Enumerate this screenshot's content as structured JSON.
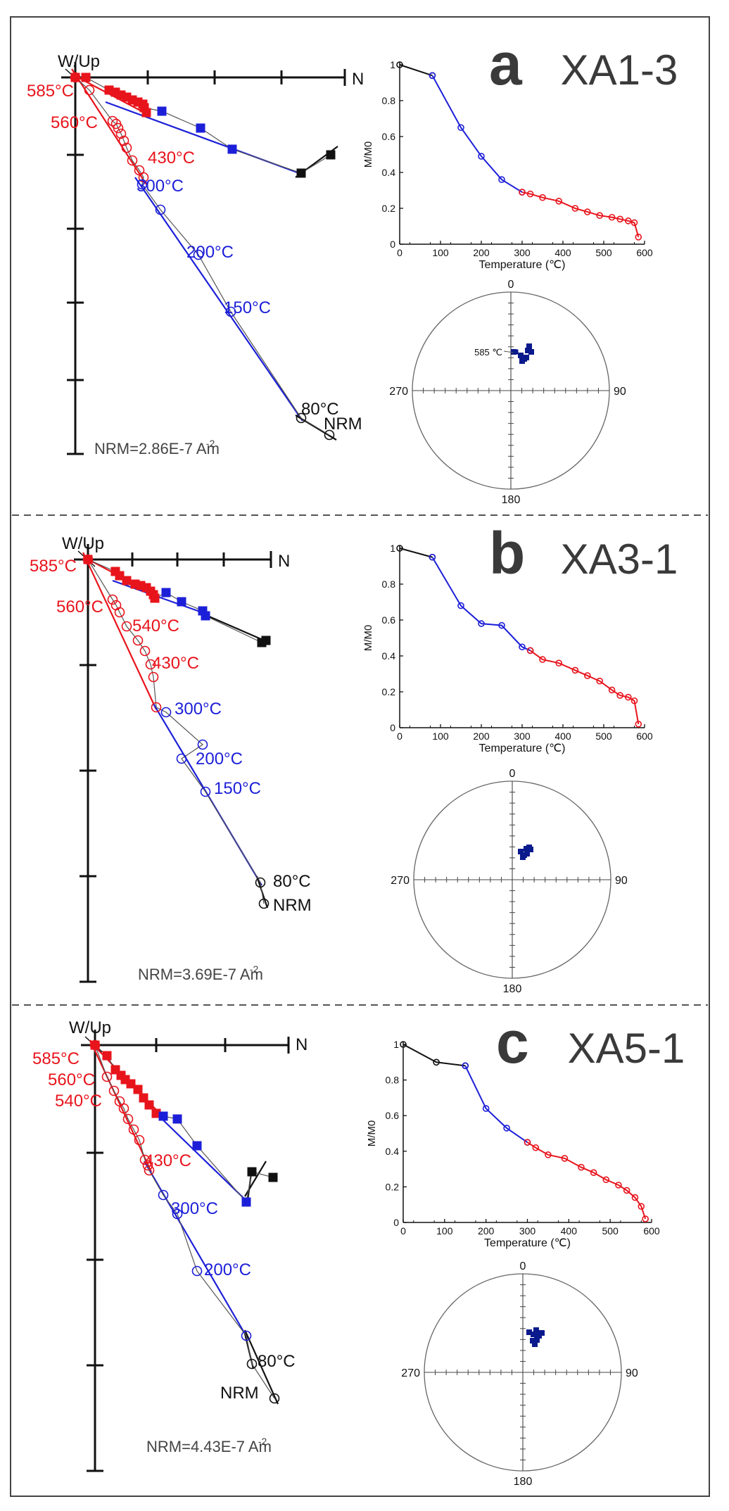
{
  "figure": {
    "panels": [
      {
        "letter": "a",
        "sample": "XA1-3",
        "zij_label_up": "W/Up",
        "zij_label_n": "N",
        "nrm_text": "NRM=2.86E-7 Am",
        "nrm_exp": "-2",
        "zij_annotations": [
          {
            "text": "585°C",
            "color": "#e8141c"
          },
          {
            "text": "560°C",
            "color": "#e8141c"
          },
          {
            "text": "430°C",
            "color": "#e8141c"
          },
          {
            "text": "300°C",
            "color": "#1c1fd8"
          },
          {
            "text": "200°C",
            "color": "#1c1fd8"
          },
          {
            "text": "150°C",
            "color": "#1c1fd8"
          },
          {
            "text": "80°C",
            "color": "#111111"
          },
          {
            "text": "NRM",
            "color": "#111111"
          }
        ],
        "stereo_annotation": "585 ℃",
        "stereo_labels": [
          "0",
          "90",
          "180",
          "270"
        ]
      },
      {
        "letter": "b",
        "sample": "XA3-1",
        "zij_label_up": "W/Up",
        "zij_label_n": "N",
        "nrm_text": "NRM=3.69E-7 Am",
        "nrm_exp": "-2",
        "zij_annotations": [
          {
            "text": "585°C",
            "color": "#e8141c"
          },
          {
            "text": "560°C",
            "color": "#e8141c"
          },
          {
            "text": "540°C",
            "color": "#e8141c"
          },
          {
            "text": "430°C",
            "color": "#e8141c"
          },
          {
            "text": "300°C",
            "color": "#1c1fd8"
          },
          {
            "text": "200°C",
            "color": "#1c1fd8"
          },
          {
            "text": "150°C",
            "color": "#1c1fd8"
          },
          {
            "text": "80°C",
            "color": "#111111"
          },
          {
            "text": "NRM",
            "color": "#111111"
          }
        ],
        "stereo_annotation": "",
        "stereo_labels": [
          "0",
          "90",
          "180",
          "270"
        ]
      },
      {
        "letter": "c",
        "sample": "XA5-1",
        "zij_label_up": "W/Up",
        "zij_label_n": "N",
        "nrm_text": "NRM=4.43E-7 Am",
        "nrm_exp": "-2",
        "zij_annotations": [
          {
            "text": "585°C",
            "color": "#e8141c"
          },
          {
            "text": "560°C",
            "color": "#e8141c"
          },
          {
            "text": "540°C",
            "color": "#e8141c"
          },
          {
            "text": "430°C",
            "color": "#e8141c"
          },
          {
            "text": "300°C",
            "color": "#1c1fd8"
          },
          {
            "text": "200°C",
            "color": "#1c1fd8"
          },
          {
            "text": "80°C",
            "color": "#111111"
          },
          {
            "text": "NRM",
            "color": "#111111"
          }
        ],
        "stereo_annotation": "",
        "stereo_labels": [
          "0",
          "90",
          "180",
          "270"
        ]
      }
    ],
    "colors": {
      "low": "#111111",
      "mid": "#1c1fd8",
      "high": "#e8141c",
      "stereo": "#0a1a8c"
    }
  },
  "chart_data": [
    {
      "type": "line",
      "panel": "a",
      "title": "",
      "xlabel": "Temperature (℃)",
      "ylabel": "M/M0",
      "xlim": [
        0,
        600
      ],
      "ylim": [
        0,
        1
      ],
      "xticks": [
        "0",
        "100",
        "200",
        "300",
        "400",
        "500",
        "600"
      ],
      "yticks": [
        "0",
        "0.2",
        "0.4",
        "0.6",
        "0.8",
        "1"
      ],
      "series": [
        {
          "name": "low",
          "color": "#111111",
          "x": [
            0,
            80
          ],
          "y": [
            1.0,
            0.94
          ]
        },
        {
          "name": "mid",
          "color": "#1c1fd8",
          "x": [
            80,
            150,
            200,
            250,
            300
          ],
          "y": [
            0.94,
            0.65,
            0.49,
            0.36,
            0.29
          ]
        },
        {
          "name": "high",
          "color": "#e8141c",
          "x": [
            300,
            320,
            350,
            390,
            430,
            460,
            490,
            520,
            540,
            560,
            575,
            585
          ],
          "y": [
            0.29,
            0.28,
            0.26,
            0.24,
            0.2,
            0.18,
            0.16,
            0.15,
            0.14,
            0.13,
            0.12,
            0.04
          ]
        }
      ]
    },
    {
      "type": "line",
      "panel": "b",
      "title": "",
      "xlabel": "Temperature (℃)",
      "ylabel": "M/M0",
      "xlim": [
        0,
        600
      ],
      "ylim": [
        0,
        1
      ],
      "xticks": [
        "0",
        "100",
        "200",
        "300",
        "400",
        "500",
        "600"
      ],
      "yticks": [
        "0",
        "0.2",
        "0.4",
        "0.6",
        "0.8",
        "1"
      ],
      "series": [
        {
          "name": "low",
          "color": "#111111",
          "x": [
            0,
            80
          ],
          "y": [
            1.0,
            0.95
          ]
        },
        {
          "name": "mid",
          "color": "#1c1fd8",
          "x": [
            80,
            150,
            200,
            250,
            300,
            320
          ],
          "y": [
            0.95,
            0.68,
            0.58,
            0.57,
            0.45,
            0.43
          ]
        },
        {
          "name": "high",
          "color": "#e8141c",
          "x": [
            320,
            350,
            390,
            430,
            460,
            490,
            520,
            540,
            560,
            575,
            585
          ],
          "y": [
            0.43,
            0.38,
            0.36,
            0.32,
            0.29,
            0.26,
            0.21,
            0.18,
            0.17,
            0.15,
            0.02
          ]
        }
      ]
    },
    {
      "type": "line",
      "panel": "c",
      "title": "",
      "xlabel": "Temperature (℃)",
      "ylabel": "M/M0",
      "xlim": [
        0,
        600
      ],
      "ylim": [
        0,
        1
      ],
      "xticks": [
        "0",
        "100",
        "200",
        "300",
        "400",
        "500",
        "600"
      ],
      "yticks": [
        "0",
        "0.2",
        "0.4",
        "0.6",
        "0.8",
        "1"
      ],
      "series": [
        {
          "name": "low",
          "color": "#111111",
          "x": [
            0,
            80,
            150
          ],
          "y": [
            1.0,
            0.9,
            0.88
          ]
        },
        {
          "name": "mid",
          "color": "#1c1fd8",
          "x": [
            150,
            200,
            250,
            300
          ],
          "y": [
            0.88,
            0.64,
            0.53,
            0.45
          ]
        },
        {
          "name": "high",
          "color": "#e8141c",
          "x": [
            300,
            320,
            350,
            390,
            430,
            460,
            490,
            520,
            540,
            560,
            575,
            585
          ],
          "y": [
            0.45,
            0.42,
            0.38,
            0.36,
            0.31,
            0.28,
            0.24,
            0.21,
            0.18,
            0.14,
            0.09,
            0.02
          ]
        }
      ]
    }
  ]
}
